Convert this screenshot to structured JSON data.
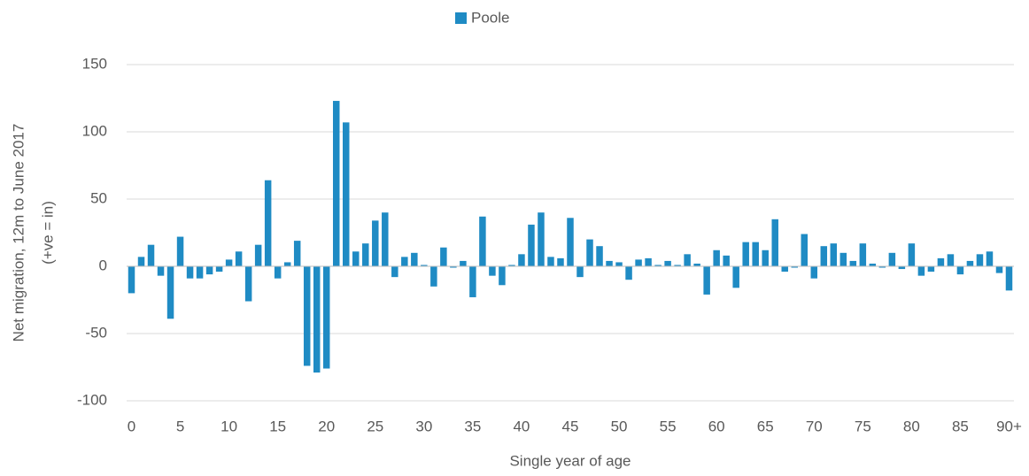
{
  "chart_data": {
    "type": "bar",
    "legend": "Poole",
    "y_label": [
      "Net migration, 12m to June 2017",
      "(+ve = in)"
    ],
    "x_label": "Single year of age",
    "categories": [
      "0",
      null,
      null,
      null,
      null,
      "5",
      null,
      null,
      null,
      null,
      "10",
      null,
      null,
      null,
      null,
      "15",
      null,
      null,
      null,
      null,
      "20",
      null,
      null,
      null,
      null,
      "25",
      null,
      null,
      null,
      null,
      "30",
      null,
      null,
      null,
      null,
      "35",
      null,
      null,
      null,
      null,
      "40",
      null,
      null,
      null,
      null,
      "45",
      null,
      null,
      null,
      null,
      "50",
      null,
      null,
      null,
      null,
      "55",
      null,
      null,
      null,
      null,
      "60",
      null,
      null,
      null,
      null,
      "65",
      null,
      null,
      null,
      null,
      "70",
      null,
      null,
      null,
      null,
      "75",
      null,
      null,
      null,
      null,
      "80",
      null,
      null,
      null,
      null,
      "85",
      null,
      null,
      null,
      null,
      "90+"
    ],
    "values": [
      -20,
      7,
      16,
      -7,
      -39,
      22,
      -9,
      -9,
      -6,
      -4,
      5,
      11,
      -26,
      16,
      64,
      -9,
      3,
      19,
      -74,
      -79,
      -76,
      123,
      107,
      11,
      17,
      34,
      40,
      -8,
      7,
      10,
      1,
      -15,
      14,
      -1,
      4,
      -23,
      37,
      -7,
      -14,
      1,
      9,
      31,
      40,
      7,
      6,
      36,
      -8,
      20,
      15,
      4,
      3,
      -10,
      5,
      6,
      1,
      4,
      1,
      9,
      2,
      -21,
      12,
      8,
      -16,
      18,
      18,
      12,
      35,
      -4,
      -1,
      24,
      -9,
      15,
      17,
      10,
      4,
      17,
      2,
      -1,
      10,
      -2,
      17,
      -7,
      -4,
      6,
      9,
      -6,
      4,
      9,
      11,
      -5,
      -18
    ],
    "color": "#1f8bc4",
    "ylim": [
      -100,
      150
    ],
    "yticks": [
      -100,
      -50,
      0,
      50,
      100,
      150
    ],
    "grid": true
  }
}
